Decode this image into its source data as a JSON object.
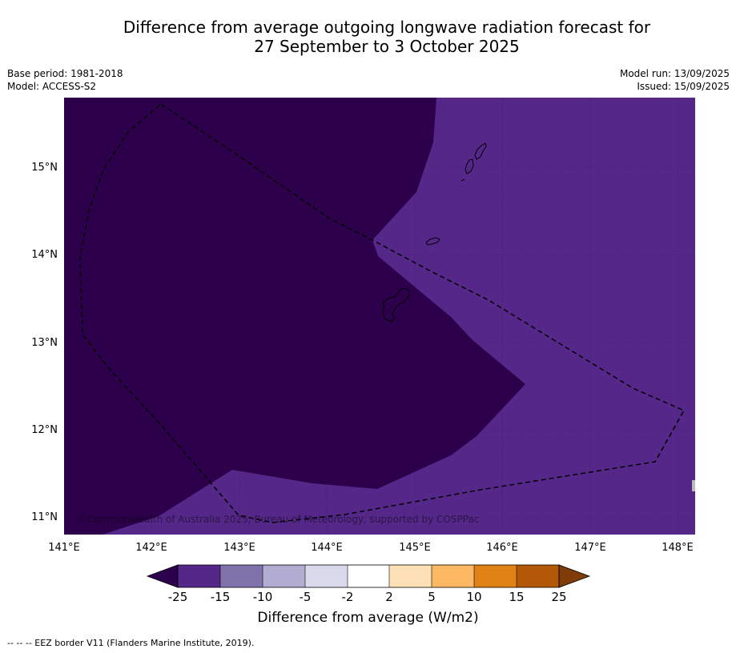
{
  "title": {
    "line1": "Difference from average outgoing longwave radiation forecast for",
    "line2": "27 September to 3 October 2025"
  },
  "meta": {
    "base_period": "Base period: 1981-2018",
    "model": "Model: ACCESS-S2",
    "model_run": "Model run: 13/09/2025",
    "issued": "Issued: 15/09/2025"
  },
  "map": {
    "lon_labels": [
      "141°E",
      "142°E",
      "143°E",
      "144°E",
      "145°E",
      "146°E",
      "147°E",
      "148°E"
    ],
    "lat_labels": [
      "15°N",
      "14°N",
      "13°N",
      "12°N",
      "11°N"
    ],
    "copyright": "© Commonwealth of Australia 2025, Bureau of Meteorology, supported by COSPPac",
    "colors": {
      "lt_-25": "#2d004b",
      "-25_-15": "#542788",
      "border": "#000000"
    }
  },
  "colorbar": {
    "title": "Difference from average (W/m2)",
    "ticks": [
      "-25",
      "-15",
      "-10",
      "-5",
      "-2",
      "2",
      "5",
      "10",
      "15",
      "25"
    ],
    "colors": [
      "#2d004b",
      "#542788",
      "#8073ac",
      "#b2abd2",
      "#d8daeb",
      "#ffffff",
      "#fee0b6",
      "#fdb863",
      "#e08214",
      "#b35806",
      "#7f3b08"
    ]
  },
  "legend": {
    "eez": "--  --  -- EEZ border V11 (Flanders Marine Institute, 2019)."
  }
}
